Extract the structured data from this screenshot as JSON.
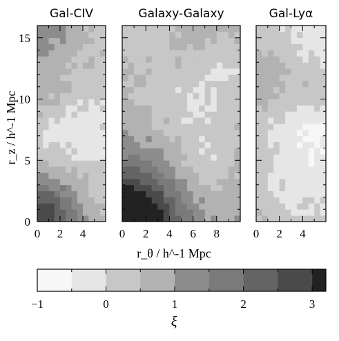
{
  "chart_data": {
    "type": "heatmap",
    "layout": "three side-by-side panels sharing the y axis, with a horizontal grey-scale colorbar below",
    "cell_size": "about 0.5 h^-1 Mpc in each direction",
    "ylabel": "r_z / h^-1 Mpc",
    "xlabel": "r_θ / h^-1 Mpc",
    "ylim": [
      0,
      16
    ],
    "yticks": [
      "0",
      "5",
      "10",
      "15"
    ],
    "panels": [
      {
        "title": "Gal-CIV",
        "xlim": [
          0,
          6
        ],
        "xticks": [
          "0",
          "2",
          "4"
        ],
        "pattern_seed": 7,
        "core_strength": 2.3,
        "core_radius": 3.0,
        "background_level": 0.55
      },
      {
        "title": "Galaxy-Galaxy",
        "xlim": [
          0,
          10
        ],
        "xticks": [
          "0",
          "2",
          "4",
          "6",
          "8"
        ],
        "pattern_seed": 19,
        "core_strength": 3.0,
        "core_radius": 4.5,
        "background_level": 0.85
      },
      {
        "title": "Gal-Lyα",
        "xlim": [
          0,
          6
        ],
        "xticks": [
          "0",
          "2",
          "4"
        ],
        "pattern_seed": 31,
        "core_strength": 0.9,
        "core_radius": 6.0,
        "background_level": 0.15
      }
    ],
    "colorbar": {
      "label": "ξ",
      "range": [
        -1,
        3.2
      ],
      "ticks": [
        "−1",
        "0",
        "1",
        "2",
        "3"
      ],
      "levels": [
        -1.0,
        -0.5,
        0.0,
        0.5,
        1.0,
        1.5,
        2.0,
        2.5,
        3.0
      ],
      "colors": [
        "#f7f7f7",
        "#e6e6e6",
        "#c7c7c7",
        "#b2b2b2",
        "#8c8c8c",
        "#7a7a7a",
        "#646464",
        "#4a4a4a",
        "#222222"
      ]
    }
  }
}
